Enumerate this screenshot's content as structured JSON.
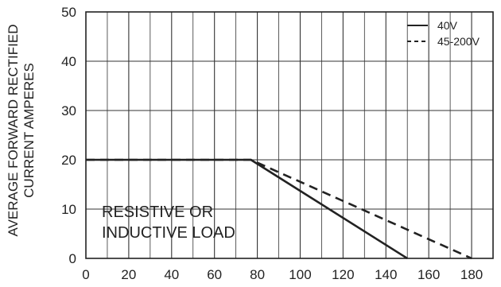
{
  "chart_data": {
    "type": "line",
    "title": "",
    "xlabel": "",
    "ylabel_lines": [
      "AVERAGE FORWARD RECTIFIED",
      "CURRENT AMPERES"
    ],
    "x_ticks": [
      0,
      20,
      40,
      60,
      80,
      100,
      120,
      140,
      160,
      180
    ],
    "y_ticks": [
      0,
      10,
      20,
      30,
      40,
      50
    ],
    "xlim": [
      0,
      190
    ],
    "ylim": [
      0,
      50
    ],
    "grid": {
      "x_major_every": 20,
      "x_minor_every": 10,
      "y_major_every": 10
    },
    "legend_position": "top-right",
    "series": [
      {
        "name": "40V",
        "style": "solid",
        "color": "#222222",
        "x": [
          0,
          77,
          150
        ],
        "y": [
          20,
          20,
          0
        ]
      },
      {
        "name": "45-200V",
        "style": "dashed",
        "color": "#222222",
        "x": [
          0,
          77,
          180
        ],
        "y": [
          20,
          20,
          0
        ]
      }
    ],
    "annotations": [
      {
        "lines": [
          "RESISTIVE OR",
          "INDUCTIVE LOAD"
        ]
      }
    ]
  }
}
